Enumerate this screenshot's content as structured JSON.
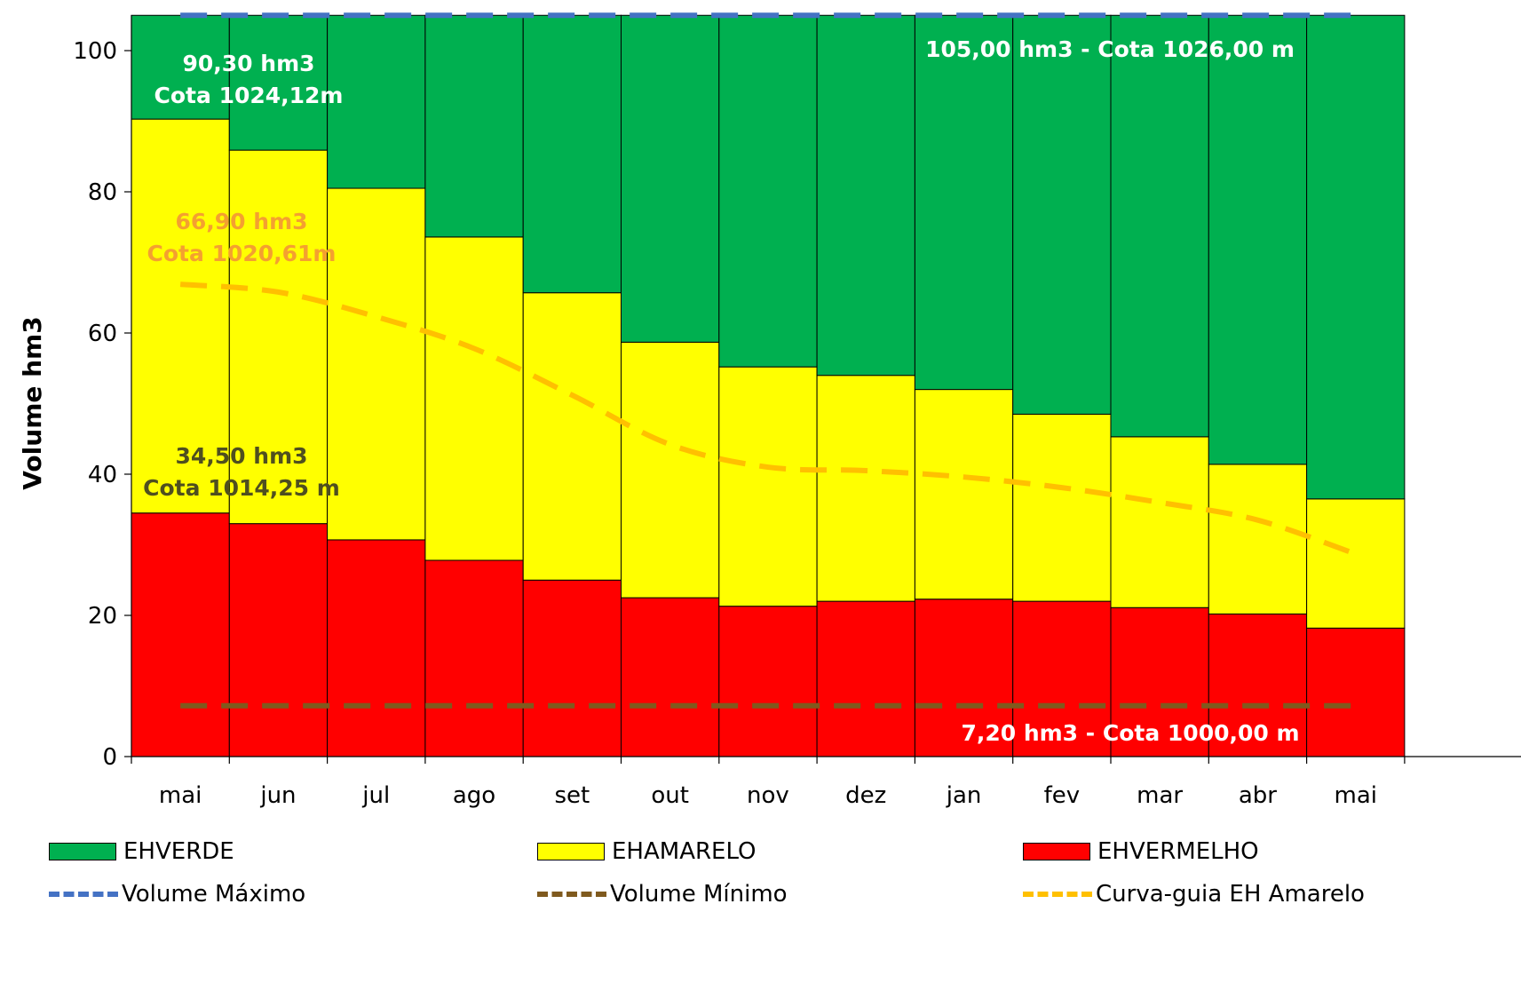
{
  "chart_data": {
    "type": "bar",
    "stacked": true,
    "ylabel": "Volume hm3",
    "xlabel": "",
    "ylim": [
      0,
      105
    ],
    "yticks": [
      0,
      20,
      40,
      60,
      80,
      100
    ],
    "categories": [
      "mai",
      "jun",
      "jul",
      "ago",
      "set",
      "out",
      "nov",
      "dez",
      "jan",
      "fev",
      "mar",
      "abr",
      "mai"
    ],
    "series": [
      {
        "name": "EHVERMELHO",
        "color": "#ff0000",
        "values": [
          34.5,
          33.0,
          30.7,
          27.8,
          25.0,
          22.5,
          21.3,
          22.0,
          22.3,
          22.0,
          21.1,
          20.2,
          18.2
        ]
      },
      {
        "name": "EHAMARELO",
        "color": "#ffff00",
        "values": [
          55.8,
          52.9,
          49.8,
          45.8,
          40.7,
          36.2,
          33.9,
          32.0,
          29.7,
          26.5,
          24.2,
          21.2,
          18.3
        ]
      },
      {
        "name": "EHVERDE",
        "color": "#00b050",
        "values": [
          14.7,
          19.1,
          24.5,
          31.4,
          39.3,
          46.3,
          49.8,
          51.0,
          53.0,
          56.5,
          59.7,
          63.6,
          68.5
        ]
      }
    ],
    "lines": [
      {
        "name": "Volume Máximo",
        "color": "#4472c4",
        "style": "dashed",
        "value": 105.0
      },
      {
        "name": "Volume Mínimo",
        "color": "#7f5a1e",
        "style": "dashed",
        "value": 7.2
      },
      {
        "name": "Curva-guia EH Amarelo",
        "color": "#ffc000",
        "style": "dashed",
        "values": [
          66.9,
          65.8,
          62.3,
          57.8,
          51.2,
          44.2,
          41.0,
          40.5,
          39.6,
          38.1,
          36.0,
          33.5,
          28.7
        ]
      }
    ],
    "annotations": [
      {
        "id": "green",
        "lines": [
          "90,30  hm3",
          "Cota 1024,12m"
        ],
        "color": "#ffffff"
      },
      {
        "id": "max",
        "lines": [
          "105,00 hm3 - Cota 1026,00 m"
        ],
        "color": "#ffffff"
      },
      {
        "id": "orange",
        "lines": [
          "66,90  hm3",
          "Cota 1020,61m"
        ],
        "color": "#f4a030"
      },
      {
        "id": "red",
        "lines": [
          "34,50 hm3",
          "Cota 1014,25 m"
        ],
        "color": "#4f4f1f"
      },
      {
        "id": "min",
        "lines": [
          "7,20 hm3 - Cota 1000,00 m"
        ],
        "color": "#ffffff"
      }
    ],
    "legend": {
      "position": "bottom",
      "items": [
        {
          "label": "EHVERDE",
          "kind": "fill",
          "color": "#00b050"
        },
        {
          "label": "EHAMARELO",
          "kind": "fill",
          "color": "#ffff00"
        },
        {
          "label": "EHVERMELHO",
          "kind": "fill",
          "color": "#ff0000"
        },
        {
          "label": "Volume Máximo",
          "kind": "dash",
          "color": "#4472c4"
        },
        {
          "label": "Volume Mínimo",
          "kind": "dash",
          "color": "#7f5a1e"
        },
        {
          "label": "Curva-guia EH Amarelo",
          "kind": "dash",
          "color": "#ffc000"
        }
      ]
    }
  }
}
